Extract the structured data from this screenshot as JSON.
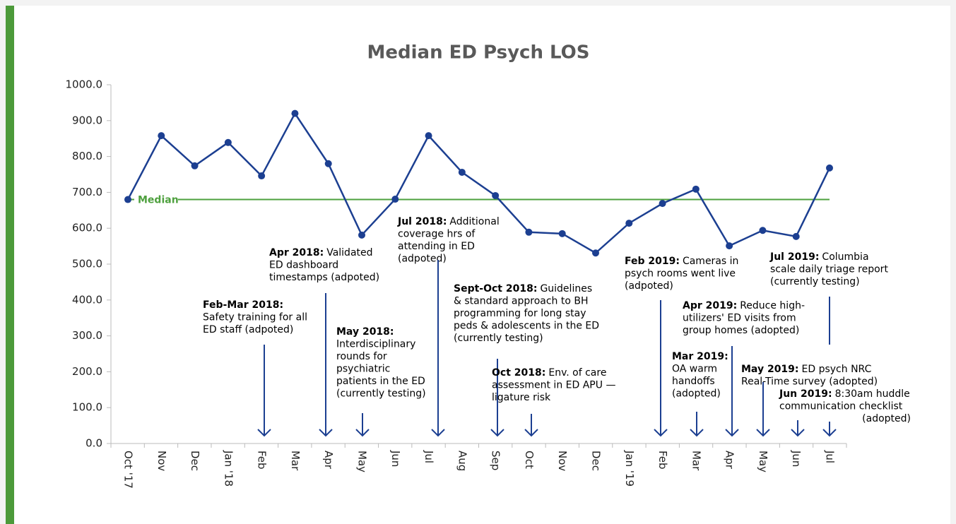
{
  "chart_data": {
    "type": "line",
    "title": "Median ED Psych LOS",
    "categories": [
      "Oct '17",
      "Nov",
      "Dec",
      "Jan '18",
      "Feb",
      "Mar",
      "Apr",
      "May",
      "Jun",
      "Jul",
      "Aug",
      "Sep",
      "Oct",
      "Nov",
      "Dec",
      "Jan '19",
      "Feb",
      "Mar",
      "Apr",
      "May",
      "Jun",
      "Jul"
    ],
    "series": [
      {
        "name": "Median ED Psych LOS",
        "color": "#1c3f91",
        "values": [
          680,
          858,
          774,
          839,
          746,
          920,
          780,
          581,
          681,
          858,
          756,
          691,
          589,
          585,
          531,
          614,
          669,
          709,
          551,
          594,
          577,
          768
        ]
      }
    ],
    "median": {
      "value": 680,
      "label": "Median",
      "color": "#4ea03e"
    },
    "ylim": [
      0,
      1000
    ],
    "yticks": [
      {
        "value": 0,
        "label": "0.0"
      },
      {
        "value": 100,
        "label": "100.0"
      },
      {
        "value": 200,
        "label": "200.0"
      },
      {
        "value": 300,
        "label": "300.0"
      },
      {
        "value": 400,
        "label": "400.0"
      },
      {
        "value": 500,
        "label": "500.0"
      },
      {
        "value": 600,
        "label": "600.0"
      },
      {
        "value": 700,
        "label": "700.0"
      },
      {
        "value": 800,
        "label": "800.0"
      },
      {
        "value": 900,
        "label": "900.0"
      },
      {
        "value": 1000,
        "label": "1000.0"
      }
    ],
    "annotations": [
      {
        "head": "Feb-Mar 2018:",
        "lines": [
          "Safety training for all",
          "ED staff (adpoted)"
        ]
      },
      {
        "head": "Apr 2018:",
        "lines": [
          "Validated",
          "ED dashboard",
          "timestamps (adpoted)"
        ]
      },
      {
        "head": "May 2018:",
        "lines": [
          "Interdisciplinary",
          "rounds for",
          "psychiatric",
          "patients in the ED",
          "(currently testing)"
        ]
      },
      {
        "head": "Jul 2018:",
        "lines": [
          "Additional",
          "coverage hrs of",
          "attending in ED",
          "(adpoted)"
        ]
      },
      {
        "head": "Sept-Oct 2018:",
        "lines": [
          "Guidelines",
          "& standard approach to BH",
          "programming for long stay",
          "peds & adolescents in the ED",
          "(currently testing)"
        ]
      },
      {
        "head": "Oct 2018:",
        "lines": [
          "Env. of care",
          "assessment in ED APU —",
          "ligature risk"
        ]
      },
      {
        "head": "Feb 2019:",
        "lines": [
          "Cameras in",
          "psych rooms went live",
          "(adpoted)"
        ]
      },
      {
        "head": "Apr 2019:",
        "lines": [
          "Reduce high-",
          "utilizers' ED visits from",
          "group homes (adopted)"
        ]
      },
      {
        "head": "Mar 2019:",
        "lines": [
          "OA warm",
          "handoffs",
          "(adopted)"
        ]
      },
      {
        "head": "Jul 2019:",
        "lines": [
          "Columbia",
          "scale daily triage report",
          "(currently testing)"
        ]
      },
      {
        "head": "May 2019:",
        "lines": [
          "ED psych NRC",
          "Real-Time survey (adopted)"
        ]
      },
      {
        "head": "Jun 2019:",
        "lines": [
          "8:30am huddle",
          "communication checklist",
          "(adopted)"
        ]
      }
    ]
  }
}
